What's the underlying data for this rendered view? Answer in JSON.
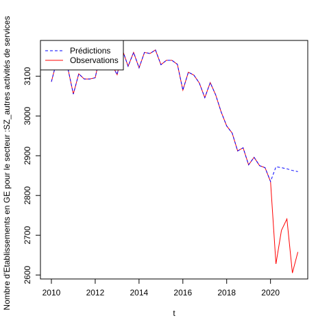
{
  "chart_data": {
    "type": "line",
    "title": "",
    "xlabel": "t",
    "ylabel": "Nombre d'Etablissements en GE pour le secteur :SZ_autres activités de services",
    "xlim": [
      2009.5,
      2021.7
    ],
    "ylim": [
      2590,
      3190
    ],
    "x_ticks": [
      2010,
      2012,
      2014,
      2016,
      2018,
      2020
    ],
    "y_ticks": [
      2600,
      2700,
      2800,
      2900,
      3000,
      3100
    ],
    "grid": false,
    "legend_position": "top-left",
    "series": [
      {
        "name": "Prédictions",
        "color": "#0000ff",
        "style": "dashed",
        "x": [
          2010.0,
          2010.25,
          2010.5,
          2010.75,
          2011.0,
          2011.25,
          2011.5,
          2011.75,
          2012.0,
          2012.25,
          2012.5,
          2012.75,
          2013.0,
          2013.25,
          2013.5,
          2013.75,
          2014.0,
          2014.25,
          2014.5,
          2014.75,
          2015.0,
          2015.25,
          2015.5,
          2015.75,
          2016.0,
          2016.25,
          2016.5,
          2016.75,
          2017.0,
          2017.25,
          2017.5,
          2017.75,
          2018.0,
          2018.25,
          2018.5,
          2018.75,
          2019.0,
          2019.25,
          2019.5,
          2019.75,
          2020.0,
          2020.25,
          2020.5,
          2020.75,
          2021.0,
          2021.25
        ],
        "values": [
          3086,
          3140,
          3150,
          3120,
          3055,
          3106,
          3093,
          3093,
          3096,
          3160,
          3150,
          3130,
          3104,
          3165,
          3125,
          3160,
          3121,
          3160,
          3157,
          3166,
          3129,
          3140,
          3140,
          3130,
          3065,
          3110,
          3103,
          3083,
          3046,
          3084,
          3053,
          3010,
          2975,
          2957,
          2912,
          2920,
          2877,
          2896,
          2875,
          2870,
          2835,
          2872,
          2870,
          2867,
          2863,
          2860
        ]
      },
      {
        "name": "Observations",
        "color": "#ff0000",
        "style": "solid",
        "x": [
          2010.0,
          2010.25,
          2010.5,
          2010.75,
          2011.0,
          2011.25,
          2011.5,
          2011.75,
          2012.0,
          2012.25,
          2012.5,
          2012.75,
          2013.0,
          2013.25,
          2013.5,
          2013.75,
          2014.0,
          2014.25,
          2014.5,
          2014.75,
          2015.0,
          2015.25,
          2015.5,
          2015.75,
          2016.0,
          2016.25,
          2016.5,
          2016.75,
          2017.0,
          2017.25,
          2017.5,
          2017.75,
          2018.0,
          2018.25,
          2018.5,
          2018.75,
          2019.0,
          2019.25,
          2019.5,
          2019.75,
          2020.0,
          2020.25,
          2020.5,
          2020.75,
          2021.0,
          2021.25
        ],
        "values": [
          3086,
          3140,
          3150,
          3120,
          3055,
          3106,
          3093,
          3093,
          3096,
          3160,
          3150,
          3130,
          3104,
          3165,
          3125,
          3160,
          3121,
          3160,
          3157,
          3166,
          3129,
          3140,
          3140,
          3130,
          3065,
          3110,
          3103,
          3083,
          3046,
          3084,
          3053,
          3010,
          2975,
          2957,
          2912,
          2920,
          2877,
          2896,
          2875,
          2870,
          2835,
          2628,
          2712,
          2741,
          2605,
          2658
        ]
      }
    ]
  }
}
